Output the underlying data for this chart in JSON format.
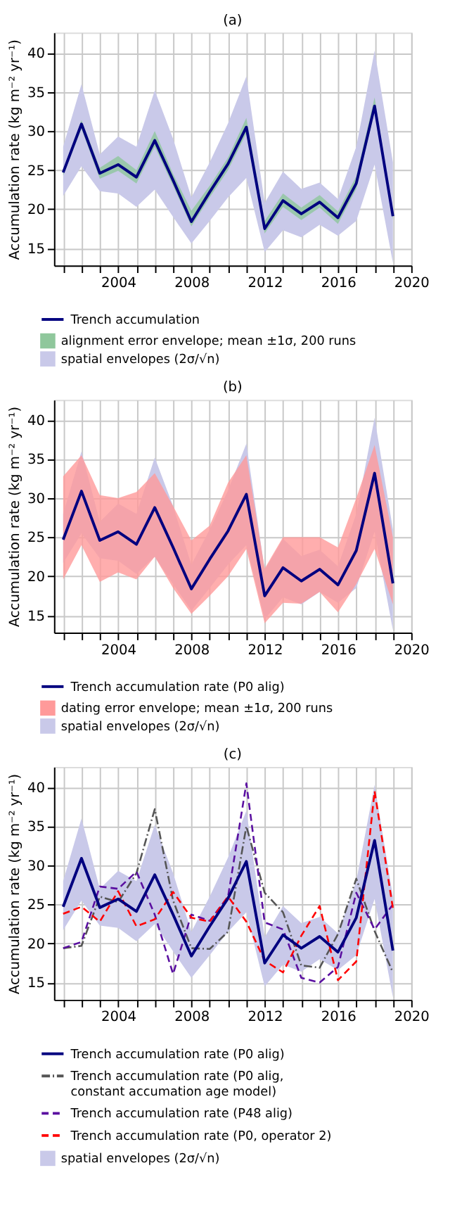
{
  "chart_data": [
    {
      "type": "line",
      "title": "(a)",
      "ylabel": "Accumulation rate (kg m⁻² yr⁻¹)",
      "x": [
        2001,
        2002,
        2003,
        2004,
        2005,
        2006,
        2007,
        2008,
        2009,
        2010,
        2011,
        2012,
        2013,
        2014,
        2015,
        2016,
        2017,
        2018,
        2019
      ],
      "xlim": [
        2000.5,
        2020
      ],
      "ylim": [
        12.8,
        42.6
      ],
      "xticks": [
        {
          "value": 2001,
          "label": null
        },
        {
          "value": 2002,
          "label": null
        },
        {
          "value": 2003,
          "label": null
        },
        2004,
        {
          "value": 2005,
          "label": null
        },
        {
          "value": 2006,
          "label": null
        },
        {
          "value": 2007,
          "label": null
        },
        2008,
        {
          "value": 2009,
          "label": null
        },
        {
          "value": 2010,
          "label": null
        },
        {
          "value": 2011,
          "label": null
        },
        2012,
        {
          "value": 2013,
          "label": null
        },
        {
          "value": 2014,
          "label": null
        },
        {
          "value": 2015,
          "label": null
        },
        2016,
        {
          "value": 2017,
          "label": null
        },
        {
          "value": 2018,
          "label": null
        },
        {
          "value": 2019,
          "label": null
        },
        2020
      ],
      "yticks": [
        15,
        20,
        25,
        30,
        35,
        40
      ],
      "grid": true,
      "legend": "bottom",
      "series": [
        {
          "name": "Trench accumulation",
          "color": "#00007f",
          "line_style": "solid",
          "values": [
            24.7,
            30.9,
            24.6,
            25.7,
            24.1,
            28.8,
            23.7,
            18.4,
            22.2,
            25.8,
            30.5,
            17.5,
            21.1,
            19.4,
            20.9,
            18.9,
            23.3,
            33.2,
            19.1
          ]
        },
        {
          "name": "alignment error envelope; mean ±1σ, 200 runs",
          "type": "area",
          "color": "#8fc79c",
          "values": [
            null,
            null,
            null,
            null,
            null,
            null,
            null,
            null,
            null,
            null,
            null,
            null,
            null,
            null,
            null,
            null,
            null,
            null,
            null
          ],
          "lower": [
            24.3,
            30.3,
            23.9,
            24.9,
            23.3,
            28.0,
            23.0,
            17.8,
            21.5,
            25.0,
            29.7,
            16.9,
            20.3,
            18.6,
            20.2,
            18.1,
            22.6,
            32.5,
            18.7
          ],
          "upper": [
            25.1,
            31.4,
            25.3,
            26.8,
            25.0,
            30.0,
            24.5,
            19.8,
            23.0,
            26.6,
            31.7,
            18.5,
            22.0,
            20.2,
            21.8,
            19.7,
            24.2,
            34.3,
            19.5
          ]
        },
        {
          "name": "spatial envelopes (2σ/√n)",
          "type": "area",
          "color": "#c9c9e9",
          "values": [
            null,
            null,
            null,
            null,
            null,
            null,
            null,
            null,
            null,
            null,
            null,
            null,
            null,
            null,
            null,
            null,
            null,
            null,
            null
          ],
          "lower": [
            21.7,
            25.5,
            22.3,
            22.0,
            20.3,
            22.5,
            19.0,
            15.6,
            18.5,
            21.5,
            24.0,
            14.5,
            17.3,
            16.4,
            18.0,
            16.6,
            18.5,
            25.7,
            13.1
          ],
          "upper": [
            28.0,
            36.0,
            27.0,
            29.3,
            28.0,
            35.2,
            29.0,
            21.5,
            26.0,
            31.0,
            37.0,
            20.8,
            24.8,
            22.6,
            23.4,
            21.3,
            28.0,
            40.3,
            26.0
          ]
        }
      ]
    },
    {
      "type": "line",
      "title": "(b)",
      "ylabel": "Accumulation rate (kg m⁻² yr⁻¹)",
      "x": [
        2001,
        2002,
        2003,
        2004,
        2005,
        2006,
        2007,
        2008,
        2009,
        2010,
        2011,
        2012,
        2013,
        2014,
        2015,
        2016,
        2017,
        2018,
        2019
      ],
      "xlim": [
        2000.5,
        2020
      ],
      "ylim": [
        12.8,
        42.6
      ],
      "xticks": [
        {
          "value": 2001,
          "label": null
        },
        {
          "value": 2002,
          "label": null
        },
        {
          "value": 2003,
          "label": null
        },
        2004,
        {
          "value": 2005,
          "label": null
        },
        {
          "value": 2006,
          "label": null
        },
        {
          "value": 2007,
          "label": null
        },
        2008,
        {
          "value": 2009,
          "label": null
        },
        {
          "value": 2010,
          "label": null
        },
        {
          "value": 2011,
          "label": null
        },
        2012,
        {
          "value": 2013,
          "label": null
        },
        {
          "value": 2014,
          "label": null
        },
        {
          "value": 2015,
          "label": null
        },
        2016,
        {
          "value": 2017,
          "label": null
        },
        {
          "value": 2018,
          "label": null
        },
        {
          "value": 2019,
          "label": null
        },
        2020
      ],
      "yticks": [
        15,
        20,
        25,
        30,
        35,
        40
      ],
      "grid": true,
      "legend": "bottom",
      "series": [
        {
          "name": "Trench accumulation rate (P0 alig)",
          "color": "#00007f",
          "line_style": "solid",
          "values": [
            24.7,
            30.9,
            24.6,
            25.7,
            24.1,
            28.8,
            23.7,
            18.4,
            22.2,
            25.8,
            30.5,
            17.5,
            21.1,
            19.4,
            20.9,
            18.9,
            23.3,
            33.2,
            19.1
          ]
        },
        {
          "name": "dating error envelope; mean ±1σ, 200 runs",
          "type": "area",
          "color": "#ff9a9a",
          "values": [
            null,
            null,
            null,
            null,
            null,
            null,
            null,
            null,
            null,
            null,
            null,
            null,
            null,
            null,
            null,
            null,
            null,
            null,
            null
          ],
          "lower": [
            19.6,
            24.0,
            19.3,
            20.5,
            19.6,
            22.5,
            18.5,
            15.2,
            17.5,
            20.0,
            23.5,
            14.0,
            16.6,
            16.5,
            18.0,
            15.4,
            19.0,
            23.5,
            16.4
          ],
          "upper": [
            32.8,
            35.5,
            30.4,
            30.0,
            30.8,
            33.2,
            29.0,
            24.6,
            26.5,
            32.0,
            35.5,
            21.0,
            25.0,
            25.0,
            25.0,
            23.7,
            30.0,
            36.8,
            25.0
          ]
        },
        {
          "name": "spatial envelopes (2σ/√n)",
          "type": "area",
          "color": "#c9c9e9",
          "values": [
            null,
            null,
            null,
            null,
            null,
            null,
            null,
            null,
            null,
            null,
            null,
            null,
            null,
            null,
            null,
            null,
            null,
            null,
            null
          ],
          "lower": [
            21.7,
            25.5,
            22.3,
            22.0,
            20.3,
            22.5,
            19.0,
            15.6,
            18.5,
            21.5,
            24.0,
            14.5,
            17.3,
            16.4,
            18.0,
            16.6,
            18.5,
            25.7,
            13.1
          ],
          "upper": [
            28.0,
            36.0,
            27.0,
            29.3,
            28.0,
            35.2,
            29.0,
            21.5,
            26.0,
            31.0,
            37.0,
            20.8,
            24.8,
            22.6,
            23.4,
            21.3,
            28.0,
            40.3,
            26.0
          ]
        }
      ]
    },
    {
      "type": "line",
      "title": "(c)",
      "ylabel": "Accumulation rate (kg m⁻² yr⁻¹)",
      "x": [
        2001,
        2002,
        2003,
        2004,
        2005,
        2006,
        2007,
        2008,
        2009,
        2010,
        2011,
        2012,
        2013,
        2014,
        2015,
        2016,
        2017,
        2018,
        2019
      ],
      "xlim": [
        2000.5,
        2020
      ],
      "ylim": [
        12.8,
        42.6
      ],
      "xticks": [
        {
          "value": 2001,
          "label": null
        },
        {
          "value": 2002,
          "label": null
        },
        {
          "value": 2003,
          "label": null
        },
        2004,
        {
          "value": 2005,
          "label": null
        },
        {
          "value": 2006,
          "label": null
        },
        {
          "value": 2007,
          "label": null
        },
        2008,
        {
          "value": 2009,
          "label": null
        },
        {
          "value": 2010,
          "label": null
        },
        {
          "value": 2011,
          "label": null
        },
        2012,
        {
          "value": 2013,
          "label": null
        },
        {
          "value": 2014,
          "label": null
        },
        {
          "value": 2015,
          "label": null
        },
        2016,
        {
          "value": 2017,
          "label": null
        },
        {
          "value": 2018,
          "label": null
        },
        {
          "value": 2019,
          "label": null
        },
        2020
      ],
      "yticks": [
        15,
        20,
        25,
        30,
        35,
        40
      ],
      "grid": true,
      "legend": "bottom",
      "series": [
        {
          "name": "Trench accumulation rate (P0 alig)",
          "color": "#00007f",
          "line_style": "solid",
          "values": [
            24.7,
            30.9,
            24.6,
            25.7,
            24.1,
            28.8,
            23.7,
            18.4,
            22.2,
            25.8,
            30.5,
            17.5,
            21.1,
            19.4,
            20.9,
            18.9,
            23.3,
            33.2,
            19.1
          ]
        },
        {
          "name": "Trench accumulation rate (P0 alig, constant accumation age model)",
          "color": "#555555",
          "line_style": "dashdot",
          "values": [
            19.4,
            19.7,
            26.0,
            25.3,
            29.0,
            37.2,
            25.5,
            19.4,
            19.3,
            21.5,
            35.0,
            26.5,
            24.0,
            17.2,
            16.9,
            21.2,
            28.3,
            21.6,
            16.3
          ]
        },
        {
          "name": "Trench accumulation rate (P48 alig)",
          "color": "#5a0fa0",
          "line_style": "dashed",
          "values": [
            19.4,
            20.2,
            27.3,
            27.0,
            29.2,
            23.7,
            16.1,
            23.7,
            22.9,
            26.0,
            40.5,
            22.7,
            21.8,
            15.6,
            15.0,
            17.0,
            26.5,
            21.8,
            25.0
          ]
        },
        {
          "name": "Trench accumulation rate (P0, operator 2)",
          "color": "#ff0000",
          "line_style": "dashed",
          "values": [
            23.8,
            24.7,
            22.8,
            26.7,
            22.2,
            23.1,
            26.6,
            23.3,
            22.8,
            26.0,
            22.8,
            17.8,
            16.3,
            21.0,
            24.8,
            15.3,
            17.7,
            39.5,
            24.5
          ]
        },
        {
          "name": "spatial envelopes (2σ/√n)",
          "type": "area",
          "color": "#c9c9e9",
          "values": [
            null,
            null,
            null,
            null,
            null,
            null,
            null,
            null,
            null,
            null,
            null,
            null,
            null,
            null,
            null,
            null,
            null,
            null,
            null
          ],
          "lower": [
            21.7,
            25.5,
            22.3,
            22.0,
            20.3,
            22.5,
            19.0,
            15.6,
            18.5,
            21.5,
            24.0,
            14.5,
            17.3,
            16.4,
            18.0,
            16.6,
            18.5,
            25.7,
            13.1
          ],
          "upper": [
            28.0,
            36.0,
            27.0,
            29.3,
            28.0,
            35.2,
            29.0,
            21.5,
            26.0,
            31.0,
            37.0,
            20.8,
            24.8,
            22.6,
            23.4,
            21.3,
            28.0,
            40.3,
            26.0
          ]
        }
      ]
    }
  ]
}
